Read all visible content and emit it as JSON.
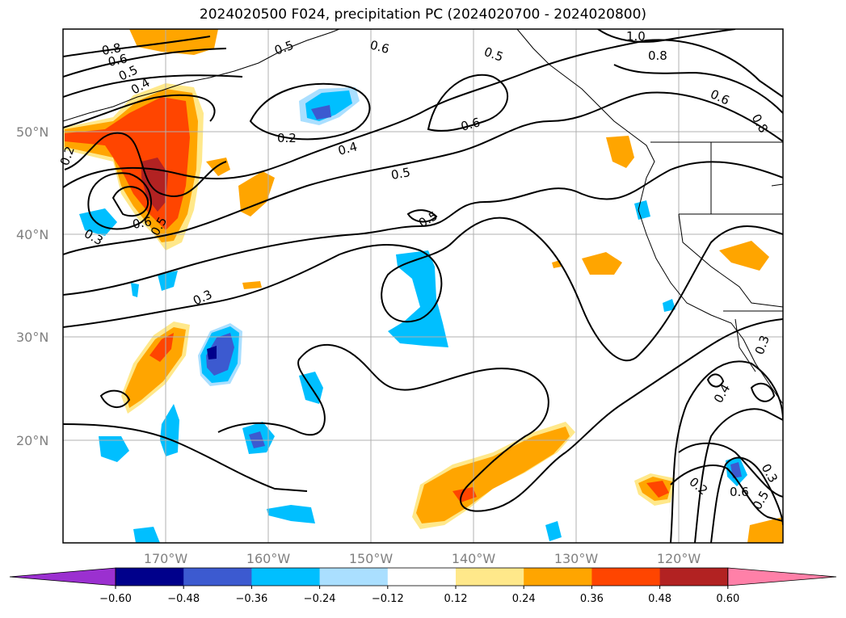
{
  "title": "2024020500 F024, precipitation PC (2024020700 - 2024020800)",
  "map": {
    "lat_labels": [
      "50°N",
      "40°N",
      "30°N",
      "20°N"
    ],
    "lon_labels": [
      "170°W",
      "160°W",
      "150°W",
      "140°W",
      "130°W",
      "120°W"
    ],
    "contour_labels": [
      "0.8",
      "0.6",
      "0.5",
      "0.4",
      "0.2",
      "0.3",
      "0.5",
      "0.6",
      "0.3",
      "0.4",
      "0.5",
      "0.6",
      "0.2",
      "0.5",
      "0.6",
      "1.0",
      "0.8",
      "0.6",
      "0.8",
      "0.5",
      "0.5",
      "0.4",
      "0.3",
      "0.6",
      "0.2",
      "0.5",
      "0.3"
    ]
  },
  "colorbar": {
    "ticks": [
      "−0.60",
      "−0.48",
      "−0.36",
      "−0.24",
      "−0.12",
      "0.12",
      "0.24",
      "0.36",
      "0.48",
      "0.60"
    ],
    "colors": [
      "#9b30d0",
      "#00008b",
      "#3c5ad0",
      "#00bfff",
      "#aadfff",
      "#ffffff",
      "#ffe88a",
      "#ffa500",
      "#ff4500",
      "#b22222",
      "#ff80a8"
    ]
  }
}
